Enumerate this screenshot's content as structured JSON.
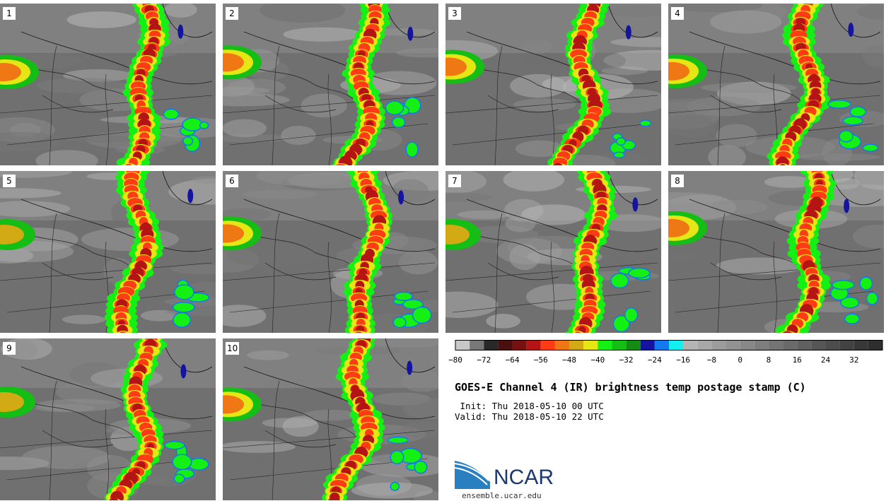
{
  "header": {
    "title": "GOES-E Channel 4 (IR) brightness temp postage stamp (C)",
    "init": " Init: Thu 2018-05-10 00 UTC",
    "valid": "Valid: Thu 2018-05-10 22 UTC"
  },
  "members": [
    "1",
    "2",
    "3",
    "4",
    "5",
    "6",
    "7",
    "8",
    "9",
    "10"
  ],
  "colorbar": {
    "tick_labels": [
      "−80",
      "−72",
      "−64",
      "−56",
      "−48",
      "−40",
      "−32",
      "−24",
      "−16",
      "−8",
      "0",
      "8",
      "16",
      "24",
      "32"
    ],
    "min": -80,
    "max": 40,
    "step": 4,
    "colors": [
      "#c8c8c8",
      "#787878",
      "#282828",
      "#4a1010",
      "#781010",
      "#b41414",
      "#ff3c14",
      "#f07814",
      "#d2aa14",
      "#e6e614",
      "#14f014",
      "#14be14",
      "#148c14",
      "#1414a0",
      "#1478f0",
      "#14f0f0",
      "#b4b4b4",
      "#a8a8a8",
      "#9c9c9c",
      "#929292",
      "#888888",
      "#7e7e7e",
      "#747474",
      "#6a6a6a",
      "#606060",
      "#565656",
      "#4c4c4c",
      "#424242",
      "#383838",
      "#2e2e2e"
    ]
  },
  "branding": {
    "logo_text": "NCAR",
    "url": "ensemble.ucar.edu"
  }
}
